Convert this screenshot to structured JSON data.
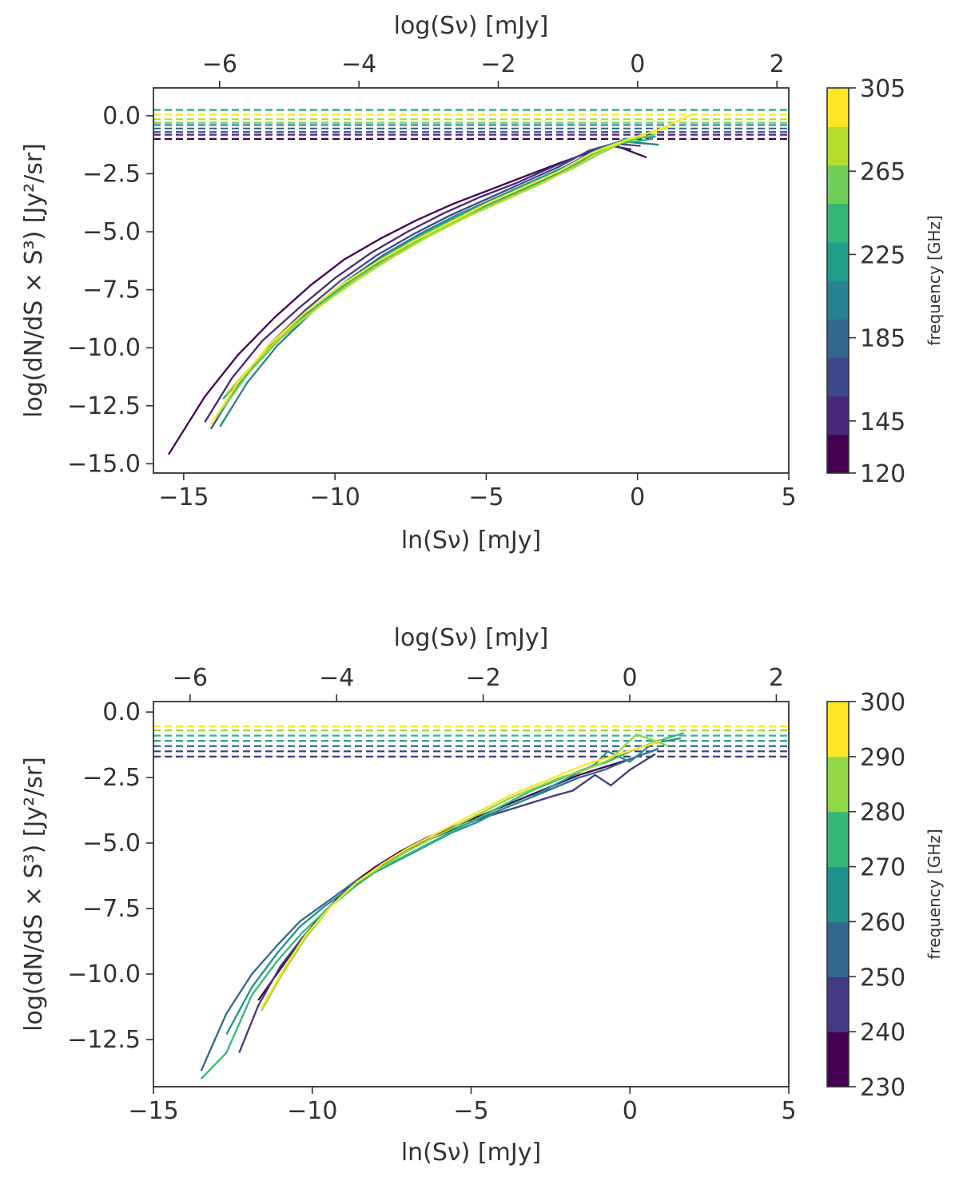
{
  "chart_data": [
    {
      "type": "line",
      "title": "",
      "xlabel": "ln(Sν) [mJy]",
      "top_xlabel": "log(Sν) [mJy]",
      "ylabel": "log(dN/dS × S³) [Jy²/sr]",
      "xlim": [
        -16,
        5
      ],
      "top_xlim": [
        -6.95,
        2.17
      ],
      "ylim": [
        -15.4,
        1.2
      ],
      "xticks": [
        -15,
        -10,
        -5,
        0,
        5
      ],
      "xtick_labels": [
        "−15",
        "−10",
        "−5",
        "0",
        "5"
      ],
      "top_xticks": [
        -6,
        -4,
        -2,
        0,
        2
      ],
      "top_xtick_labels": [
        "−6",
        "−4",
        "−2",
        "0",
        "2"
      ],
      "yticks": [
        0,
        -2.5,
        -5,
        -7.5,
        -10,
        -12.5,
        -15
      ],
      "ytick_labels": [
        "0.0",
        "−2.5",
        "−5.0",
        "−7.5",
        "−10.0",
        "−12.5",
        "−15.0"
      ],
      "colorbar": {
        "label": "frequency [GHz]",
        "range": [
          120,
          305
        ],
        "ticks": [
          120,
          145,
          185,
          225,
          265,
          305
        ],
        "tick_labels": [
          "120",
          "145",
          "185",
          "225",
          "265",
          "305"
        ],
        "colors": [
          "#440154",
          "#482878",
          "#3e4989",
          "#31688e",
          "#26828e",
          "#1f9e89",
          "#35b779",
          "#6ece58",
          "#b5de2b",
          "#fde725"
        ]
      },
      "hlines": [
        {
          "y": -1.0,
          "color": "#440154"
        },
        {
          "y": -0.82,
          "color": "#482878"
        },
        {
          "y": -0.7,
          "color": "#3e4989"
        },
        {
          "y": -0.55,
          "color": "#31688e"
        },
        {
          "y": -0.4,
          "color": "#26828e"
        },
        {
          "y": -0.3,
          "color": "#6ece58"
        },
        {
          "y": -0.15,
          "color": "#b5de2b"
        },
        {
          "y": 0.05,
          "color": "#fde725"
        },
        {
          "y": 0.25,
          "color": "#1f9e89"
        }
      ],
      "series": [
        {
          "color": "#440154",
          "x": [
            -15.5,
            -14.3,
            -13.2,
            -12.0,
            -10.8,
            -9.7,
            -8.5,
            -7.3,
            -6.1,
            -4.9,
            -3.7,
            -2.5,
            -1.5,
            -0.7,
            0.3
          ],
          "y": [
            -14.6,
            -12.1,
            -10.3,
            -8.7,
            -7.3,
            -6.2,
            -5.3,
            -4.5,
            -3.8,
            -3.2,
            -2.6,
            -2.0,
            -1.55,
            -1.3,
            -1.8
          ]
        },
        {
          "color": "#482878",
          "x": [
            -14.3,
            -13.4,
            -12.4,
            -11.2,
            -10.0,
            -8.8,
            -7.6,
            -6.4,
            -5.2,
            -4.0,
            -2.8,
            -1.7,
            -0.9,
            -0.2
          ],
          "y": [
            -13.2,
            -11.3,
            -9.7,
            -8.3,
            -7.0,
            -5.9,
            -5.0,
            -4.2,
            -3.5,
            -2.9,
            -2.2,
            -1.6,
            -1.3,
            -1.45
          ]
        },
        {
          "color": "#3e4989",
          "x": [
            -14.1,
            -13.2,
            -12.2,
            -11.0,
            -9.8,
            -8.6,
            -7.4,
            -6.2,
            -5.0,
            -3.8,
            -2.6,
            -1.6,
            -0.8,
            0.1
          ],
          "y": [
            -13.5,
            -11.6,
            -9.9,
            -8.4,
            -7.1,
            -6.0,
            -5.1,
            -4.3,
            -3.6,
            -2.9,
            -2.2,
            -1.5,
            -1.2,
            -1.3
          ]
        },
        {
          "color": "#31688e",
          "x": [
            -13.8,
            -13.0,
            -12.0,
            -10.8,
            -9.6,
            -8.4,
            -7.2,
            -6.0,
            -4.8,
            -3.6,
            -2.4,
            -1.4,
            -0.6,
            0.3
          ],
          "y": [
            -12.8,
            -11.2,
            -9.7,
            -8.3,
            -7.1,
            -6.0,
            -5.1,
            -4.3,
            -3.6,
            -2.9,
            -2.2,
            -1.5,
            -1.1,
            -1.2
          ]
        },
        {
          "color": "#26828e",
          "x": [
            -13.8,
            -12.9,
            -11.9,
            -10.7,
            -9.5,
            -8.3,
            -7.1,
            -5.9,
            -4.7,
            -3.5,
            -2.3,
            -1.3,
            -0.5,
            0.7
          ],
          "y": [
            -13.4,
            -11.5,
            -9.9,
            -8.4,
            -7.2,
            -6.1,
            -5.2,
            -4.4,
            -3.7,
            -3.0,
            -2.3,
            -1.5,
            -1.1,
            -1.25
          ]
        },
        {
          "color": "#1f9e89",
          "x": [
            -13.7,
            -12.8,
            -11.8,
            -10.6,
            -9.4,
            -8.2,
            -7.0,
            -5.8,
            -4.6,
            -3.4,
            -2.2,
            -1.2,
            -0.4,
            0.6
          ],
          "y": [
            -12.2,
            -10.9,
            -9.5,
            -8.2,
            -7.0,
            -5.9,
            -5.0,
            -4.2,
            -3.5,
            -2.8,
            -2.1,
            -1.4,
            -1.0,
            -0.9
          ]
        },
        {
          "color": "#35b779",
          "x": [
            -13.9,
            -13.0,
            -12.0,
            -10.8,
            -9.6,
            -8.4,
            -7.2,
            -6.0,
            -4.8,
            -3.6,
            -2.4,
            -1.4,
            -0.6,
            0.5
          ],
          "y": [
            -13.0,
            -11.3,
            -9.8,
            -8.4,
            -7.2,
            -6.1,
            -5.2,
            -4.4,
            -3.7,
            -3.0,
            -2.3,
            -1.6,
            -1.2,
            -1.0
          ]
        },
        {
          "color": "#6ece58",
          "x": [
            -13.7,
            -12.8,
            -11.8,
            -10.6,
            -9.4,
            -8.2,
            -7.0,
            -5.8,
            -4.6,
            -3.4,
            -2.2,
            -1.2,
            -0.4,
            0.6
          ],
          "y": [
            -12.6,
            -11.0,
            -9.6,
            -8.3,
            -7.1,
            -6.1,
            -5.2,
            -4.4,
            -3.7,
            -3.0,
            -2.3,
            -1.6,
            -1.1,
            -0.8
          ]
        },
        {
          "color": "#b5de2b",
          "x": [
            -13.6,
            -12.7,
            -11.7,
            -10.5,
            -9.3,
            -8.1,
            -6.9,
            -5.7,
            -4.5,
            -3.3,
            -2.1,
            -1.1,
            -0.3,
            1.0
          ],
          "y": [
            -12.0,
            -10.7,
            -9.4,
            -8.2,
            -7.1,
            -6.1,
            -5.2,
            -4.4,
            -3.7,
            -3.0,
            -2.2,
            -1.5,
            -1.0,
            -0.5
          ]
        },
        {
          "color": "#fde725",
          "x": [
            -14.1,
            -13.2,
            -12.2,
            -11.0,
            -9.8,
            -8.6,
            -7.4,
            -6.2,
            -5.0,
            -3.8,
            -2.6,
            -1.5,
            -0.5,
            0.7,
            1.8
          ],
          "y": [
            -13.3,
            -11.5,
            -9.9,
            -8.5,
            -7.3,
            -6.3,
            -5.4,
            -4.6,
            -3.8,
            -3.1,
            -2.4,
            -1.6,
            -1.1,
            -0.6,
            0.05
          ]
        }
      ]
    },
    {
      "type": "line",
      "title": "",
      "xlabel": "ln(Sν) [mJy]",
      "top_xlabel": "log(Sν) [mJy]",
      "ylabel": "log(dN/dS × S³) [Jy²/sr]",
      "xlim": [
        -15,
        5
      ],
      "top_xlim": [
        -6.5,
        2.17
      ],
      "ylim": [
        -14.3,
        0.4
      ],
      "xticks": [
        -15,
        -10,
        -5,
        0,
        5
      ],
      "xtick_labels": [
        "−15",
        "−10",
        "−5",
        "0",
        "5"
      ],
      "top_xticks": [
        -6,
        -4,
        -2,
        0,
        2
      ],
      "top_xtick_labels": [
        "−6",
        "−4",
        "−2",
        "0",
        "2"
      ],
      "yticks": [
        0,
        -2.5,
        -5,
        -7.5,
        -10,
        -12.5
      ],
      "ytick_labels": [
        "0.0",
        "−2.5",
        "−5.0",
        "−7.5",
        "−10.0",
        "−12.5"
      ],
      "colorbar": {
        "label": "frequency [GHz]",
        "range": [
          230,
          300
        ],
        "ticks": [
          230,
          240,
          250,
          260,
          270,
          280,
          290,
          300
        ],
        "tick_labels": [
          "230",
          "240",
          "250",
          "260",
          "270",
          "280",
          "290",
          "300"
        ],
        "colors": [
          "#440154",
          "#443983",
          "#31688e",
          "#21918c",
          "#35b779",
          "#90d743",
          "#fde725"
        ]
      },
      "hlines": [
        {
          "y": -1.7,
          "color": "#443983"
        },
        {
          "y": -1.5,
          "color": "#443983"
        },
        {
          "y": -1.3,
          "color": "#31688e"
        },
        {
          "y": -1.1,
          "color": "#21918c"
        },
        {
          "y": -0.9,
          "color": "#35b779"
        },
        {
          "y": -0.7,
          "color": "#90d743"
        },
        {
          "y": -0.55,
          "color": "#fde725"
        }
      ],
      "series": [
        {
          "color": "#440154",
          "x": [
            -11.7,
            -11.0,
            -10.3,
            -9.5,
            -8.8,
            -8.0,
            -7.2,
            -6.4,
            -5.6,
            -4.8,
            -4.0,
            -3.2,
            -2.4,
            -1.6,
            -0.8,
            0.0
          ],
          "y": [
            -11.0,
            -9.8,
            -8.6,
            -7.5,
            -6.6,
            -5.9,
            -5.3,
            -4.8,
            -4.4,
            -4.0,
            -3.6,
            -3.2,
            -2.8,
            -2.4,
            -2.1,
            -1.8
          ]
        },
        {
          "color": "#443983",
          "x": [
            -12.3,
            -11.7,
            -11.0,
            -10.3,
            -9.6,
            -8.8,
            -8.0,
            -7.2,
            -6.4,
            -5.6,
            -4.8,
            -4.0,
            -3.2,
            -2.4,
            -1.8,
            -1.1,
            -0.6,
            0.0,
            0.8
          ],
          "y": [
            -13.0,
            -11.2,
            -9.7,
            -8.6,
            -7.6,
            -6.7,
            -6.0,
            -5.4,
            -4.9,
            -4.5,
            -4.1,
            -3.8,
            -3.5,
            -3.2,
            -3.0,
            -2.4,
            -2.8,
            -2.2,
            -1.6
          ]
        },
        {
          "color": "#31688e",
          "x": [
            -13.5,
            -12.7,
            -11.9,
            -11.1,
            -10.4,
            -9.6,
            -8.8,
            -8.0,
            -7.2,
            -6.4,
            -5.6,
            -4.8,
            -4.0,
            -3.2,
            -2.4,
            -1.6,
            -0.8,
            0.0,
            0.9
          ],
          "y": [
            -13.7,
            -11.5,
            -10.0,
            -8.9,
            -8.0,
            -7.3,
            -6.6,
            -6.0,
            -5.4,
            -4.9,
            -4.5,
            -4.1,
            -3.7,
            -3.3,
            -2.9,
            -2.5,
            -2.2,
            -1.8,
            -1.4
          ]
        },
        {
          "color": "#21918c",
          "x": [
            -12.7,
            -11.9,
            -11.1,
            -10.4,
            -9.6,
            -8.8,
            -8.0,
            -7.2,
            -6.4,
            -5.6,
            -4.8,
            -4.0,
            -3.2,
            -2.4,
            -1.6,
            -1.1,
            -0.7,
            0.0,
            0.7,
            1.6
          ],
          "y": [
            -12.3,
            -10.5,
            -9.2,
            -8.2,
            -7.4,
            -6.7,
            -6.1,
            -5.6,
            -5.1,
            -4.6,
            -4.2,
            -3.7,
            -3.3,
            -2.8,
            -2.3,
            -2.0,
            -1.5,
            -1.9,
            -1.2,
            -1.0
          ]
        },
        {
          "color": "#35b779",
          "x": [
            -13.5,
            -12.7,
            -11.9,
            -11.1,
            -10.3,
            -9.5,
            -8.7,
            -7.9,
            -7.1,
            -6.3,
            -5.5,
            -4.7,
            -3.9,
            -3.1,
            -2.3,
            -1.5,
            -0.7,
            0.0,
            0.9,
            1.7
          ],
          "y": [
            -14.0,
            -13.0,
            -10.8,
            -9.5,
            -8.4,
            -7.5,
            -6.7,
            -6.0,
            -5.5,
            -5.0,
            -4.5,
            -4.0,
            -3.5,
            -3.0,
            -2.6,
            -2.2,
            -1.9,
            -1.5,
            -1.1,
            -0.8
          ]
        },
        {
          "color": "#90d743",
          "x": [
            -11.6,
            -10.9,
            -10.2,
            -9.4,
            -8.6,
            -7.8,
            -7.0,
            -6.2,
            -5.4,
            -4.6,
            -3.8,
            -3.0,
            -2.2,
            -1.4,
            -0.6,
            0.2,
            0.8,
            1.2
          ],
          "y": [
            -11.4,
            -9.9,
            -8.6,
            -7.4,
            -6.5,
            -5.9,
            -5.3,
            -4.8,
            -4.3,
            -3.8,
            -3.3,
            -2.9,
            -2.5,
            -2.2,
            -1.8,
            -0.85,
            -1.1,
            -1.3
          ]
        },
        {
          "color": "#fde725",
          "x": [
            -11.6,
            -10.9,
            -10.2,
            -9.4,
            -8.6,
            -7.8,
            -7.0,
            -6.2,
            -5.4,
            -4.6,
            -3.8,
            -3.0,
            -2.2,
            -1.4,
            -0.6,
            0.2,
            1.0
          ],
          "y": [
            -11.3,
            -9.8,
            -8.5,
            -7.4,
            -6.5,
            -5.8,
            -5.2,
            -4.7,
            -4.2,
            -3.7,
            -3.2,
            -2.8,
            -2.4,
            -2.0,
            -1.7,
            -1.4,
            -1.1
          ]
        }
      ]
    }
  ]
}
